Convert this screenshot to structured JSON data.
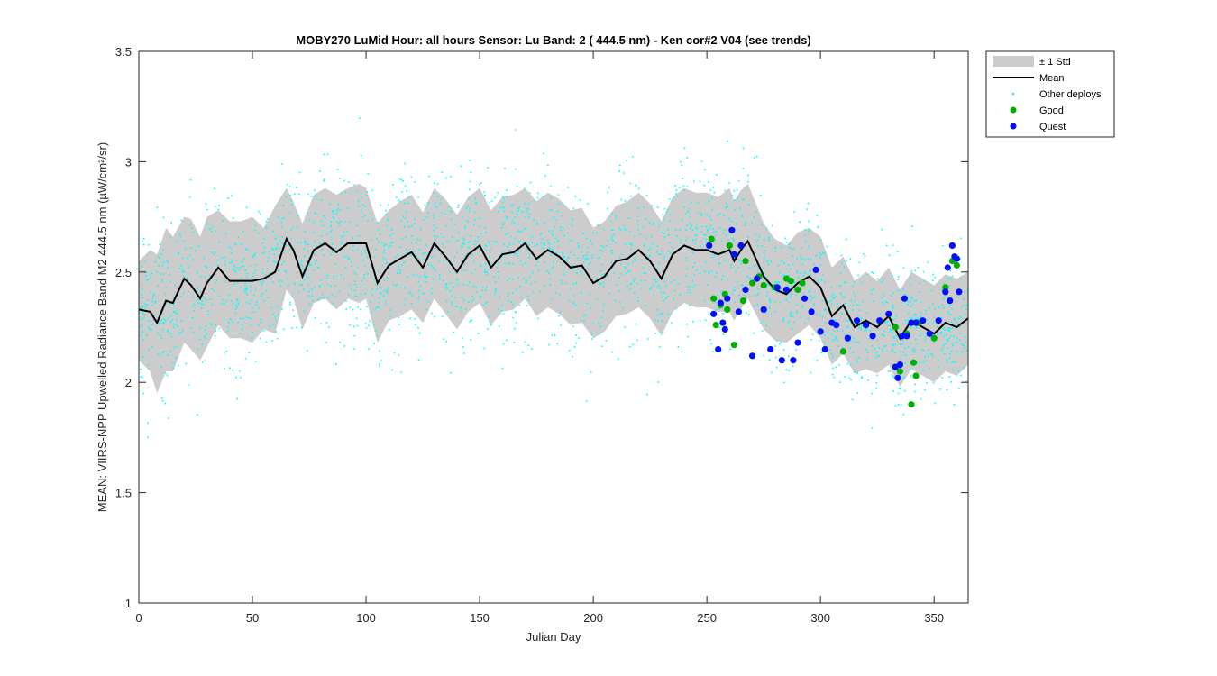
{
  "chart_data": {
    "type": "scatter",
    "title": "MOBY270   LuMid  Hour: all hours  Sensor: Lu Band: 2 ( 444.5 nm)  - Ken cor#2 V04 (see trends)",
    "xlabel": "Julian Day",
    "ylabel": "MEAN: VIIRS-NPP Upwelled Radiance Band M2 444.5 nm (µW/cm²/sr)",
    "xlim": [
      0,
      365
    ],
    "ylim": [
      1,
      3.5
    ],
    "xticks": [
      0,
      50,
      100,
      150,
      200,
      250,
      300,
      350
    ],
    "yticks": [
      1,
      1.5,
      2,
      2.5,
      3,
      3.5
    ],
    "ytick_labels": [
      "1",
      "1.5",
      "2",
      "2.5",
      "3",
      "3.5"
    ],
    "legend_position": "outside top-right",
    "legend": [
      "± 1 Std",
      "Mean",
      "Other deploys",
      "Good",
      "Quest"
    ],
    "colors": {
      "std_band": "#cccccc",
      "mean": "#000000",
      "other": "#00ffff",
      "good": "#00b000",
      "quest": "#0010ff"
    },
    "mean": {
      "x": [
        0,
        5,
        8,
        12,
        15,
        20,
        23,
        27,
        30,
        35,
        40,
        45,
        50,
        55,
        60,
        65,
        68,
        72,
        77,
        82,
        87,
        92,
        97,
        100,
        105,
        110,
        115,
        120,
        125,
        130,
        135,
        140,
        145,
        150,
        155,
        160,
        165,
        170,
        175,
        180,
        185,
        190,
        195,
        200,
        205,
        210,
        215,
        220,
        225,
        230,
        235,
        240,
        245,
        250,
        255,
        260,
        262,
        265,
        268,
        272,
        275,
        280,
        285,
        290,
        295,
        300,
        305,
        310,
        315,
        320,
        325,
        330,
        335,
        340,
        345,
        350,
        355,
        360,
        365
      ],
      "y": [
        2.33,
        2.32,
        2.27,
        2.37,
        2.36,
        2.47,
        2.44,
        2.38,
        2.45,
        2.52,
        2.46,
        2.46,
        2.46,
        2.47,
        2.5,
        2.65,
        2.6,
        2.48,
        2.6,
        2.63,
        2.59,
        2.63,
        2.63,
        2.63,
        2.45,
        2.53,
        2.56,
        2.59,
        2.52,
        2.63,
        2.57,
        2.5,
        2.58,
        2.62,
        2.52,
        2.58,
        2.59,
        2.63,
        2.56,
        2.6,
        2.57,
        2.52,
        2.53,
        2.45,
        2.48,
        2.55,
        2.56,
        2.6,
        2.55,
        2.47,
        2.58,
        2.62,
        2.6,
        2.6,
        2.58,
        2.6,
        2.55,
        2.6,
        2.64,
        2.55,
        2.48,
        2.42,
        2.4,
        2.45,
        2.48,
        2.43,
        2.3,
        2.35,
        2.25,
        2.28,
        2.25,
        2.3,
        2.2,
        2.28,
        2.25,
        2.22,
        2.27,
        2.25,
        2.29
      ]
    },
    "std": {
      "x": [
        0,
        5,
        8,
        12,
        15,
        20,
        23,
        27,
        30,
        35,
        40,
        45,
        50,
        55,
        60,
        65,
        68,
        72,
        77,
        82,
        87,
        92,
        97,
        100,
        105,
        110,
        115,
        120,
        125,
        130,
        135,
        140,
        145,
        150,
        155,
        160,
        165,
        170,
        175,
        180,
        185,
        190,
        195,
        200,
        205,
        210,
        215,
        220,
        225,
        230,
        235,
        240,
        245,
        250,
        255,
        260,
        262,
        265,
        268,
        272,
        275,
        280,
        285,
        290,
        295,
        300,
        305,
        310,
        315,
        320,
        325,
        330,
        335,
        340,
        345,
        350,
        355,
        360,
        365
      ],
      "upper": [
        2.55,
        2.6,
        2.58,
        2.7,
        2.66,
        2.75,
        2.74,
        2.66,
        2.75,
        2.78,
        2.73,
        2.73,
        2.75,
        2.7,
        2.8,
        2.88,
        2.82,
        2.72,
        2.85,
        2.88,
        2.85,
        2.88,
        2.9,
        2.88,
        2.72,
        2.78,
        2.82,
        2.85,
        2.77,
        2.88,
        2.83,
        2.76,
        2.84,
        2.88,
        2.78,
        2.84,
        2.85,
        2.88,
        2.82,
        2.86,
        2.83,
        2.78,
        2.79,
        2.7,
        2.73,
        2.8,
        2.82,
        2.86,
        2.81,
        2.73,
        2.84,
        2.88,
        2.86,
        2.86,
        2.84,
        2.88,
        2.82,
        2.87,
        2.9,
        2.8,
        2.72,
        2.65,
        2.62,
        2.68,
        2.7,
        2.66,
        2.52,
        2.57,
        2.46,
        2.5,
        2.46,
        2.52,
        2.42,
        2.5,
        2.47,
        2.44,
        2.49,
        2.47,
        2.5
      ],
      "lower": [
        2.1,
        2.05,
        1.95,
        2.05,
        2.05,
        2.18,
        2.15,
        2.1,
        2.16,
        2.26,
        2.2,
        2.2,
        2.18,
        2.24,
        2.22,
        2.42,
        2.38,
        2.24,
        2.36,
        2.38,
        2.33,
        2.38,
        2.36,
        2.38,
        2.18,
        2.28,
        2.3,
        2.33,
        2.27,
        2.38,
        2.31,
        2.24,
        2.32,
        2.36,
        2.26,
        2.32,
        2.33,
        2.38,
        2.3,
        2.34,
        2.31,
        2.26,
        2.27,
        2.2,
        2.23,
        2.3,
        2.31,
        2.34,
        2.29,
        2.21,
        2.32,
        2.36,
        2.34,
        2.34,
        2.32,
        2.32,
        2.28,
        2.33,
        2.38,
        2.3,
        2.24,
        2.19,
        2.18,
        2.22,
        2.26,
        2.2,
        2.08,
        2.13,
        2.04,
        2.06,
        2.04,
        2.08,
        1.98,
        2.06,
        2.03,
        2.0,
        2.05,
        2.03,
        2.08
      ]
    },
    "good": {
      "x": [
        252,
        253,
        254,
        256,
        258,
        259,
        260,
        262,
        266,
        267,
        270,
        273,
        275,
        280,
        285,
        287,
        290,
        292,
        310,
        320,
        333,
        335,
        338,
        340,
        341,
        342,
        343,
        350,
        355,
        358,
        360
      ],
      "y": [
        2.65,
        2.38,
        2.26,
        2.35,
        2.4,
        2.33,
        2.62,
        2.17,
        2.37,
        2.55,
        2.45,
        2.48,
        2.44,
        2.43,
        2.47,
        2.46,
        2.42,
        2.45,
        2.14,
        2.26,
        2.25,
        2.05,
        2.22,
        1.9,
        2.09,
        2.03,
        2.27,
        2.2,
        2.43,
        2.55,
        2.53
      ]
    },
    "quest": {
      "x": [
        251,
        253,
        255,
        256,
        257,
        258,
        259,
        261,
        262,
        264,
        265,
        267,
        270,
        272,
        275,
        278,
        281,
        283,
        285,
        288,
        290,
        293,
        296,
        298,
        300,
        302,
        305,
        307,
        312,
        316,
        320,
        323,
        326,
        330,
        333,
        334,
        335,
        336,
        337,
        338,
        340,
        342,
        345,
        348,
        352,
        355,
        356,
        357,
        358,
        359,
        360,
        361
      ],
      "y": [
        2.62,
        2.31,
        2.15,
        2.36,
        2.27,
        2.24,
        2.38,
        2.69,
        2.58,
        2.32,
        2.62,
        2.42,
        2.12,
        2.47,
        2.33,
        2.15,
        2.43,
        2.1,
        2.42,
        2.1,
        2.18,
        2.38,
        2.32,
        2.51,
        2.23,
        2.15,
        2.27,
        2.26,
        2.2,
        2.28,
        2.26,
        2.21,
        2.28,
        2.31,
        2.07,
        2.02,
        2.08,
        2.21,
        2.38,
        2.21,
        2.27,
        2.27,
        2.28,
        2.22,
        2.28,
        2.41,
        2.52,
        2.37,
        2.62,
        2.57,
        2.56,
        2.41
      ]
    },
    "other_deploys": {
      "description_scatter": "dense cyan point cloud around the mean band"
    }
  }
}
